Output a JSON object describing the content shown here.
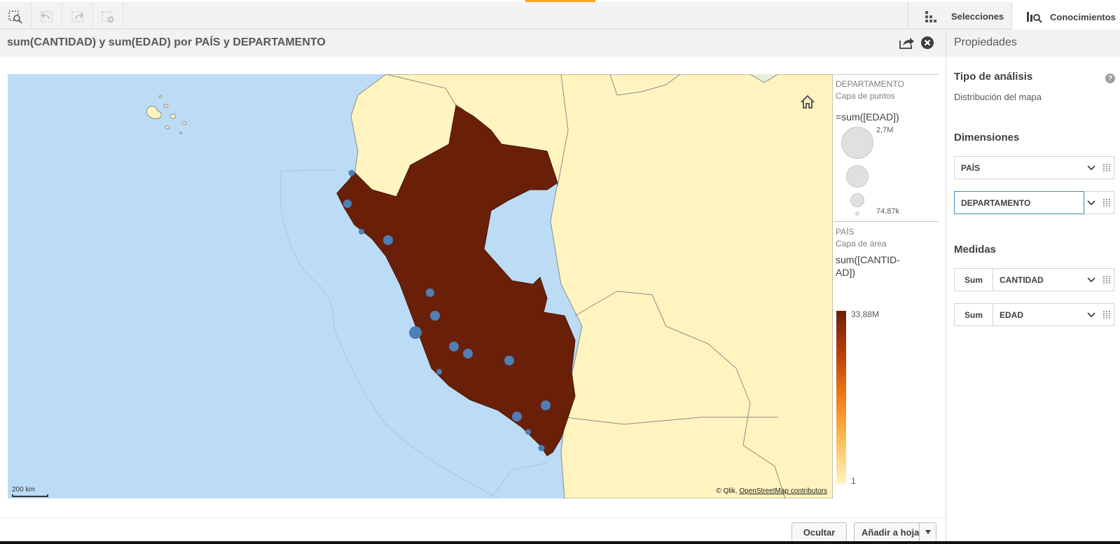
{
  "toolbar": {
    "tabs": [
      {
        "label": "Selecciones",
        "icon": "selections-grid-icon"
      },
      {
        "label": "Conocimientos",
        "icon": "insights-icon"
      }
    ]
  },
  "chart": {
    "title": "sum(CANTIDAD) y sum(EDAD) por PAÍS y DEPARTAMENTO"
  },
  "map": {
    "scale_label": "200 km",
    "attribution_prefix": "© Qlik,",
    "attribution_link": "OpenStreetMap contributors"
  },
  "legend": {
    "point_layer": {
      "dimension": "DEPARTAMENTO",
      "layer_type": "Capa de puntos",
      "expression": "=sum([EDAD])",
      "max_label": "2,7M",
      "min_label": "74,87k"
    },
    "area_layer": {
      "dimension": "PAÍS",
      "layer_type": "Capa de área",
      "expression_line1": "sum([CANTID-",
      "expression_line2": "AD])",
      "max_label": "33,88M",
      "min_label": "1"
    }
  },
  "footer": {
    "hide_label": "Ocultar",
    "add_label": "Añadir a hoja"
  },
  "properties": {
    "title": "Propiedades",
    "analysis_type_title": "Tipo de análisis",
    "analysis_type_value": "Distribución del mapa",
    "dimensions_title": "Dimensiones",
    "dimensions": [
      "PAÍS",
      "DEPARTAMENTO"
    ],
    "measures_title": "Medidas",
    "measures": [
      {
        "agg": "Sum",
        "field": "CANTIDAD"
      },
      {
        "agg": "Sum",
        "field": "EDAD"
      }
    ]
  },
  "colors": {
    "sea": "#bcdcf6",
    "land": "#fff4bf",
    "country_fill": "#6a2008",
    "point": "#4f7fb8",
    "active_border": "#3f8ab3"
  }
}
